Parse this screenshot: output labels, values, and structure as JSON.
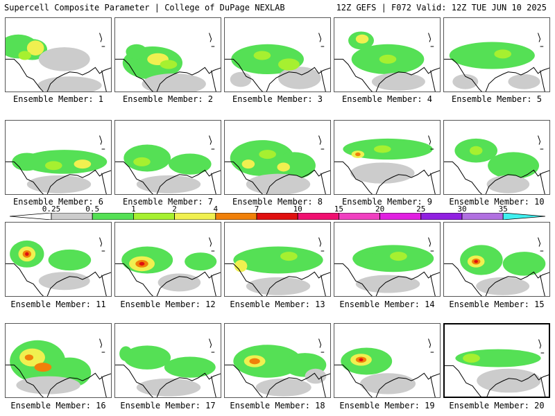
{
  "header": {
    "left": "Supercell Composite Parameter | College of DuPage NEXLAB",
    "right": "12Z GEFS | F072 Valid: 12Z TUE JUN 10 2025"
  },
  "caption_prefix": "Ensemble Member:",
  "members": [
    {
      "id": "1",
      "label": "Ensemble Member: 1",
      "blobs": [
        [
          0.12,
          0.38,
          0.18,
          0.16,
          "#55e055"
        ],
        [
          0.25,
          0.42,
          0.14,
          0.14,
          "#55e055"
        ],
        [
          0.55,
          0.55,
          0.24,
          0.16,
          "#cccccc"
        ],
        [
          0.6,
          0.9,
          0.3,
          0.12,
          "#cccccc"
        ],
        [
          0.28,
          0.4,
          0.08,
          0.1,
          "#f0f050"
        ],
        [
          0.18,
          0.5,
          0.06,
          0.06,
          "#a6f030"
        ]
      ]
    },
    {
      "id": "2",
      "label": "Ensemble Member: 2",
      "blobs": [
        [
          0.35,
          0.6,
          0.28,
          0.22,
          "#55e055"
        ],
        [
          0.55,
          0.88,
          0.3,
          0.14,
          "#cccccc"
        ],
        [
          0.2,
          0.45,
          0.1,
          0.1,
          "#55e055"
        ],
        [
          0.4,
          0.55,
          0.1,
          0.08,
          "#f0f050"
        ],
        [
          0.5,
          0.62,
          0.08,
          0.06,
          "#a6f030"
        ]
      ]
    },
    {
      "id": "3",
      "label": "Ensemble Member: 3",
      "blobs": [
        [
          0.4,
          0.55,
          0.34,
          0.2,
          "#55e055"
        ],
        [
          0.7,
          0.8,
          0.2,
          0.15,
          "#cccccc"
        ],
        [
          0.15,
          0.82,
          0.1,
          0.1,
          "#cccccc"
        ],
        [
          0.35,
          0.5,
          0.08,
          0.06,
          "#a6f030"
        ],
        [
          0.6,
          0.62,
          0.1,
          0.08,
          "#a6f030"
        ]
      ]
    },
    {
      "id": "4",
      "label": "Ensemble Member: 4",
      "blobs": [
        [
          0.25,
          0.3,
          0.12,
          0.12,
          "#55e055"
        ],
        [
          0.5,
          0.55,
          0.34,
          0.2,
          "#55e055"
        ],
        [
          0.6,
          0.85,
          0.25,
          0.12,
          "#cccccc"
        ],
        [
          0.26,
          0.28,
          0.06,
          0.06,
          "#f0f050"
        ],
        [
          0.5,
          0.55,
          0.08,
          0.06,
          "#a6f030"
        ]
      ]
    },
    {
      "id": "5",
      "label": "Ensemble Member: 5",
      "blobs": [
        [
          0.45,
          0.5,
          0.4,
          0.18,
          "#55e055"
        ],
        [
          0.2,
          0.85,
          0.12,
          0.1,
          "#cccccc"
        ],
        [
          0.75,
          0.85,
          0.15,
          0.1,
          "#cccccc"
        ],
        [
          0.55,
          0.48,
          0.08,
          0.06,
          "#a6f030"
        ]
      ]
    },
    {
      "id": "6",
      "label": "Ensemble Member: 6",
      "blobs": [
        [
          0.55,
          0.55,
          0.4,
          0.16,
          "#55e055"
        ],
        [
          0.2,
          0.55,
          0.14,
          0.12,
          "#55e055"
        ],
        [
          0.5,
          0.85,
          0.3,
          0.12,
          "#cccccc"
        ],
        [
          0.72,
          0.58,
          0.08,
          0.06,
          "#f0f050"
        ],
        [
          0.45,
          0.6,
          0.08,
          0.06,
          "#a6f030"
        ]
      ]
    },
    {
      "id": "7",
      "label": "Ensemble Member: 7",
      "blobs": [
        [
          0.3,
          0.5,
          0.22,
          0.18,
          "#55e055"
        ],
        [
          0.7,
          0.58,
          0.2,
          0.14,
          "#55e055"
        ],
        [
          0.5,
          0.85,
          0.3,
          0.12,
          "#cccccc"
        ],
        [
          0.25,
          0.55,
          0.08,
          0.06,
          "#a6f030"
        ]
      ]
    },
    {
      "id": "8",
      "label": "Ensemble Member: 8",
      "blobs": [
        [
          0.35,
          0.5,
          0.3,
          0.24,
          "#55e055"
        ],
        [
          0.65,
          0.6,
          0.2,
          0.18,
          "#55e055"
        ],
        [
          0.5,
          0.85,
          0.3,
          0.14,
          "#cccccc"
        ],
        [
          0.22,
          0.58,
          0.06,
          0.06,
          "#f0f050"
        ],
        [
          0.55,
          0.62,
          0.06,
          0.06,
          "#f0f050"
        ],
        [
          0.4,
          0.45,
          0.08,
          0.06,
          "#a6f030"
        ]
      ]
    },
    {
      "id": "9",
      "label": "Ensemble Member: 9",
      "blobs": [
        [
          0.5,
          0.38,
          0.42,
          0.14,
          "#55e055"
        ],
        [
          0.45,
          0.7,
          0.3,
          0.14,
          "#cccccc"
        ],
        [
          0.22,
          0.45,
          0.06,
          0.05,
          "#f0f050"
        ],
        [
          0.22,
          0.45,
          0.025,
          0.025,
          "#f0800a"
        ],
        [
          0.45,
          0.38,
          0.08,
          0.05,
          "#a6f030"
        ]
      ]
    },
    {
      "id": "10",
      "label": "Ensemble Member: 10",
      "blobs": [
        [
          0.3,
          0.4,
          0.2,
          0.16,
          "#55e055"
        ],
        [
          0.65,
          0.6,
          0.24,
          0.18,
          "#55e055"
        ],
        [
          0.6,
          0.85,
          0.2,
          0.12,
          "#cccccc"
        ],
        [
          0.3,
          0.4,
          0.06,
          0.06,
          "#a6f030"
        ]
      ]
    },
    {
      "id": "11",
      "label": "Ensemble Member: 11",
      "blobs": [
        [
          0.2,
          0.42,
          0.16,
          0.18,
          "#55e055"
        ],
        [
          0.6,
          0.5,
          0.2,
          0.14,
          "#55e055"
        ],
        [
          0.55,
          0.78,
          0.24,
          0.12,
          "#cccccc"
        ],
        [
          0.2,
          0.42,
          0.08,
          0.1,
          "#f0f050"
        ],
        [
          0.2,
          0.42,
          0.04,
          0.05,
          "#f0800a"
        ],
        [
          0.2,
          0.42,
          0.018,
          0.025,
          "#e01010"
        ]
      ]
    },
    {
      "id": "12",
      "label": "Ensemble Member: 12",
      "blobs": [
        [
          0.3,
          0.5,
          0.24,
          0.18,
          "#55e055"
        ],
        [
          0.8,
          0.52,
          0.15,
          0.12,
          "#55e055"
        ],
        [
          0.6,
          0.8,
          0.2,
          0.12,
          "#cccccc"
        ],
        [
          0.25,
          0.55,
          0.12,
          0.1,
          "#f0f050"
        ],
        [
          0.25,
          0.55,
          0.06,
          0.05,
          "#f0800a"
        ],
        [
          0.25,
          0.55,
          0.025,
          0.025,
          "#e01010"
        ]
      ]
    },
    {
      "id": "13",
      "label": "Ensemble Member: 13",
      "blobs": [
        [
          0.5,
          0.5,
          0.42,
          0.18,
          "#55e055"
        ],
        [
          0.15,
          0.58,
          0.06,
          0.08,
          "#f0f050"
        ],
        [
          0.5,
          0.85,
          0.3,
          0.12,
          "#cccccc"
        ],
        [
          0.6,
          0.45,
          0.08,
          0.06,
          "#a6f030"
        ]
      ]
    },
    {
      "id": "14",
      "label": "Ensemble Member: 14",
      "blobs": [
        [
          0.55,
          0.48,
          0.38,
          0.18,
          "#55e055"
        ],
        [
          0.3,
          0.5,
          0.12,
          0.1,
          "#55e055"
        ],
        [
          0.5,
          0.82,
          0.3,
          0.12,
          "#cccccc"
        ],
        [
          0.6,
          0.45,
          0.08,
          0.06,
          "#a6f030"
        ]
      ]
    },
    {
      "id": "15",
      "label": "Ensemble Member: 15",
      "blobs": [
        [
          0.35,
          0.5,
          0.2,
          0.2,
          "#55e055"
        ],
        [
          0.75,
          0.55,
          0.2,
          0.16,
          "#55e055"
        ],
        [
          0.55,
          0.85,
          0.25,
          0.12,
          "#cccccc"
        ],
        [
          0.3,
          0.52,
          0.08,
          0.08,
          "#f0f050"
        ],
        [
          0.3,
          0.52,
          0.04,
          0.04,
          "#f0800a"
        ],
        [
          0.3,
          0.52,
          0.018,
          0.02,
          "#e01010"
        ]
      ]
    },
    {
      "id": "16",
      "label": "Ensemble Member: 16",
      "blobs": [
        [
          0.3,
          0.5,
          0.26,
          0.28,
          "#55e055"
        ],
        [
          0.6,
          0.65,
          0.2,
          0.2,
          "#55e055"
        ],
        [
          0.4,
          0.82,
          0.3,
          0.12,
          "#cccccc"
        ],
        [
          0.25,
          0.45,
          0.12,
          0.12,
          "#f0f050"
        ],
        [
          0.35,
          0.58,
          0.08,
          0.06,
          "#f0800a"
        ],
        [
          0.22,
          0.45,
          0.04,
          0.04,
          "#f0800a"
        ]
      ]
    },
    {
      "id": "17",
      "label": "Ensemble Member: 17",
      "blobs": [
        [
          0.3,
          0.45,
          0.22,
          0.16,
          "#55e055"
        ],
        [
          0.7,
          0.58,
          0.24,
          0.14,
          "#55e055"
        ],
        [
          0.5,
          0.85,
          0.3,
          0.12,
          "#cccccc"
        ],
        [
          0.1,
          0.4,
          0.06,
          0.1,
          "#55e055"
        ]
      ]
    },
    {
      "id": "18",
      "label": "Ensemble Member: 18",
      "blobs": [
        [
          0.4,
          0.5,
          0.32,
          0.22,
          "#55e055"
        ],
        [
          0.75,
          0.55,
          0.2,
          0.16,
          "#55e055"
        ],
        [
          0.55,
          0.85,
          0.26,
          0.12,
          "#cccccc"
        ],
        [
          0.28,
          0.5,
          0.1,
          0.08,
          "#f0f050"
        ],
        [
          0.28,
          0.5,
          0.05,
          0.04,
          "#f0800a"
        ],
        [
          0.85,
          0.7,
          0.1,
          0.1,
          "#cccccc"
        ]
      ]
    },
    {
      "id": "19",
      "label": "Ensemble Member: 19",
      "blobs": [
        [
          0.3,
          0.5,
          0.24,
          0.18,
          "#55e055"
        ],
        [
          0.5,
          0.8,
          0.26,
          0.14,
          "#cccccc"
        ],
        [
          0.25,
          0.48,
          0.1,
          0.08,
          "#f0f050"
        ],
        [
          0.25,
          0.48,
          0.05,
          0.04,
          "#f0800a"
        ],
        [
          0.25,
          0.48,
          0.02,
          0.02,
          "#e01010"
        ]
      ]
    },
    {
      "id": "20",
      "label": "Ensemble Member: 20",
      "selected": true,
      "blobs": [
        [
          0.5,
          0.45,
          0.4,
          0.12,
          "#55e055"
        ],
        [
          0.6,
          0.75,
          0.3,
          0.16,
          "#cccccc"
        ],
        [
          0.25,
          0.45,
          0.08,
          0.06,
          "#a6f030"
        ]
      ]
    }
  ],
  "colorbar": {
    "labels": [
      "0.25",
      "0.5",
      "1",
      "2",
      "4",
      "7",
      "10",
      "15",
      "20",
      "25",
      "30",
      "35"
    ],
    "colors": [
      "#cccccc",
      "#55e055",
      "#a6f030",
      "#f0f050",
      "#f0800a",
      "#e01010",
      "#f01070",
      "#f040c0",
      "#e020e0",
      "#9020e0",
      "#b070e0"
    ],
    "under_color": "#ffffff",
    "over_color": "#40f0f0"
  }
}
